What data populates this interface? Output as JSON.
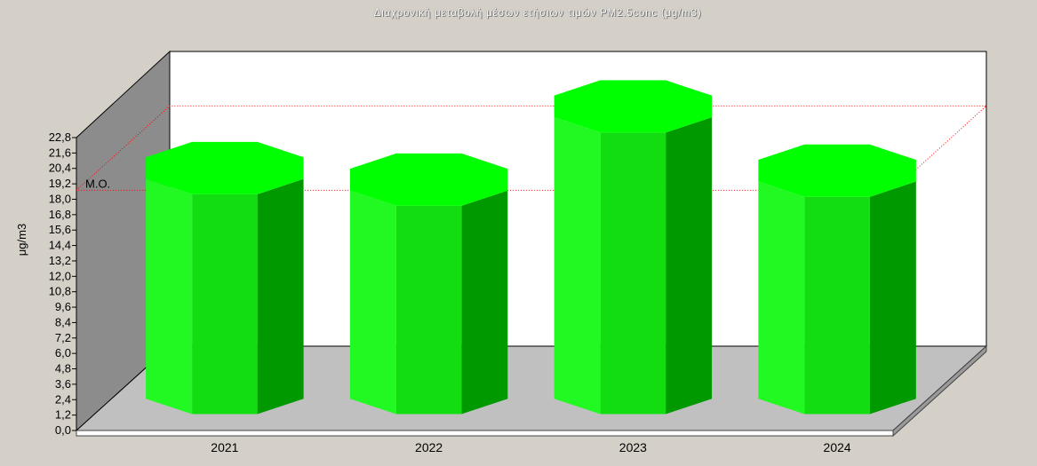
{
  "chart_data": {
    "type": "bar",
    "style": "3d-cylinder",
    "title": "Διαχρονική μεταβολή μέσων ετήσιων τιμών PM2.5conc (μg/m3)",
    "ylabel": "μg/m3",
    "xlabel": "",
    "categories": [
      "2021",
      "2022",
      "2023",
      "2024"
    ],
    "values": [
      17.8,
      16.9,
      22.6,
      17.6
    ],
    "ylim": [
      0,
      22.8
    ],
    "yticks": [
      "0,0",
      "1,2",
      "2,4",
      "3,6",
      "4,8",
      "6,0",
      "7,2",
      "8,4",
      "9,6",
      "10,8",
      "12,0",
      "13,2",
      "14,4",
      "15,6",
      "16,8",
      "18,0",
      "19,2",
      "20,4",
      "21,6",
      "22,8"
    ],
    "mean_line": {
      "label": "M.O.",
      "value": 18.7,
      "color": "#ff0000"
    },
    "bar_colors": {
      "front_light": "#22f822",
      "front": "#11dd11",
      "front_dark": "#00bf00",
      "side": "#009900",
      "top": "#00ff00"
    },
    "wall_color": "#8c8c8c",
    "floor_color": "#c0c0c0",
    "plot_background": "#ffffff",
    "grid": false,
    "legend": "none"
  }
}
